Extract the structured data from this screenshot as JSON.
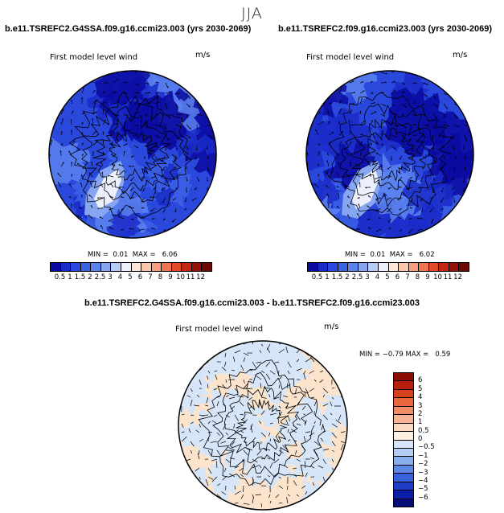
{
  "season": "JJA",
  "panels": {
    "left": {
      "title": "b.e11.TSREFC2.G4SSA.f09.g16.ccmi23.003 (yrs 2030-2069)",
      "plot_label": "First model level wind",
      "units": "m/s",
      "min_label": "MIN =",
      "min": "0.01",
      "max_label": "MAX =",
      "max": "6.06"
    },
    "right": {
      "title": "b.e11.TSREFC2.f09.g16.ccmi23.003 (yrs 2030-2069)",
      "plot_label": "First model level wind",
      "units": "m/s",
      "min_label": "MIN =",
      "min": "0.01",
      "max_label": "MAX =",
      "max": "6.02"
    },
    "diff": {
      "title": "b.e11.TSREFC2.G4SSA.f09.g16.ccmi23.003 - b.e11.TSREFC2.f09.g16.ccmi23.003",
      "plot_label": "First model level wind",
      "units": "m/s",
      "min_label": "MIN =",
      "min": "−0.79",
      "max_label": "MAX =",
      "max": "0.59"
    }
  },
  "abs_colorbar": {
    "labels": [
      "0.5",
      "1",
      "1.5",
      "2",
      "2.5",
      "3",
      "4",
      "5",
      "6",
      "7",
      "8",
      "9",
      "10",
      "11",
      "12"
    ],
    "colors": [
      "#0a0aa0",
      "#1a2cc8",
      "#2a48dc",
      "#3c62e6",
      "#5c82ee",
      "#86a6f2",
      "#b8cef8",
      "#ebf0fc",
      "#fde6d6",
      "#fbc8ac",
      "#f7a27c",
      "#f07652",
      "#e04a28",
      "#c42814",
      "#961208",
      "#6e0a04"
    ]
  },
  "diff_colorbar": {
    "labels": [
      "6",
      "5",
      "4",
      "3",
      "2",
      "1",
      "0.5",
      "0",
      "−0.5",
      "−1",
      "−2",
      "−3",
      "−4",
      "−5",
      "−6"
    ],
    "colors": [
      "#8c0c06",
      "#b81e0c",
      "#d6401e",
      "#e8663e",
      "#f28c66",
      "#f8b394",
      "#fbd8c2",
      "#fdeedf",
      "#d6e6f8",
      "#b4cdf4",
      "#8aaeee",
      "#5e88e6",
      "#3862dc",
      "#1e3ec8",
      "#0a1ea8",
      "#040c78"
    ]
  },
  "chart_data": [
    {
      "type": "heatmap",
      "title": "b.e11.TSREFC2.G4SSA.f09.g16.ccmi23.003 (yrs 2030-2069)",
      "projection": "polar stereographic",
      "variable": "First model level wind",
      "units": "m/s",
      "min": 0.01,
      "max": 6.06,
      "contour_levels": [
        0.5,
        1,
        1.5,
        2,
        2.5,
        3,
        4,
        5,
        6,
        7,
        8,
        9,
        10,
        11,
        12
      ]
    },
    {
      "type": "heatmap",
      "title": "b.e11.TSREFC2.f09.g16.ccmi23.003 (yrs 2030-2069)",
      "projection": "polar stereographic",
      "variable": "First model level wind",
      "units": "m/s",
      "min": 0.01,
      "max": 6.02,
      "contour_levels": [
        0.5,
        1,
        1.5,
        2,
        2.5,
        3,
        4,
        5,
        6,
        7,
        8,
        9,
        10,
        11,
        12
      ]
    },
    {
      "type": "heatmap",
      "title": "b.e11.TSREFC2.G4SSA.f09.g16.ccmi23.003 - b.e11.TSREFC2.f09.g16.ccmi23.003",
      "projection": "polar stereographic",
      "variable": "First model level wind",
      "units": "m/s",
      "min": -0.79,
      "max": 0.59,
      "contour_levels": [
        -6,
        -5,
        -4,
        -3,
        -2,
        -1,
        -0.5,
        0,
        0.5,
        1,
        2,
        3,
        4,
        5,
        6
      ]
    }
  ]
}
